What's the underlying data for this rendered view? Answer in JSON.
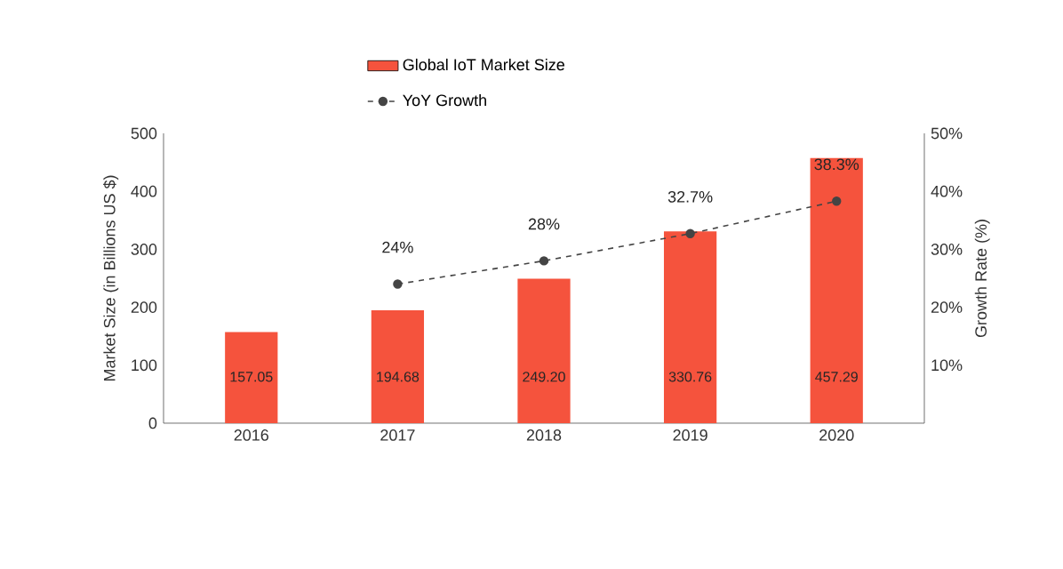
{
  "chart_data": {
    "type": "bar",
    "categories": [
      "2016",
      "2017",
      "2018",
      "2019",
      "2020"
    ],
    "ylabel": "Market Size (in Billions US $)",
    "y2label": "Growth Rate (%)",
    "ylim": [
      0,
      500
    ],
    "yticks": [
      0,
      100,
      200,
      300,
      400,
      500
    ],
    "y2lim": [
      0,
      50
    ],
    "y2ticks": [
      {
        "value": 10,
        "label": "10%"
      },
      {
        "value": 20,
        "label": "20%"
      },
      {
        "value": 30,
        "label": "30%"
      },
      {
        "value": 40,
        "label": "40%"
      },
      {
        "value": 50,
        "label": "50%"
      }
    ],
    "series": [
      {
        "name": "Global IoT Market Size",
        "color": "#f5533d",
        "values": [
          157.05,
          194.68,
          249.2,
          330.76,
          457.29
        ],
        "value_labels": [
          "157.05",
          "194.68",
          "249.20",
          "330.76",
          "457.29"
        ]
      },
      {
        "name": "YoY Growth",
        "type": "line",
        "axis": "y2",
        "color": "#444444",
        "values": [
          null,
          24,
          28,
          32.7,
          38.3
        ],
        "value_labels": [
          null,
          "24%",
          "28%",
          "32.7%",
          "38.3%"
        ]
      }
    ],
    "legend": "top",
    "grid": false,
    "marker": "circle",
    "line_style": "dashed"
  }
}
